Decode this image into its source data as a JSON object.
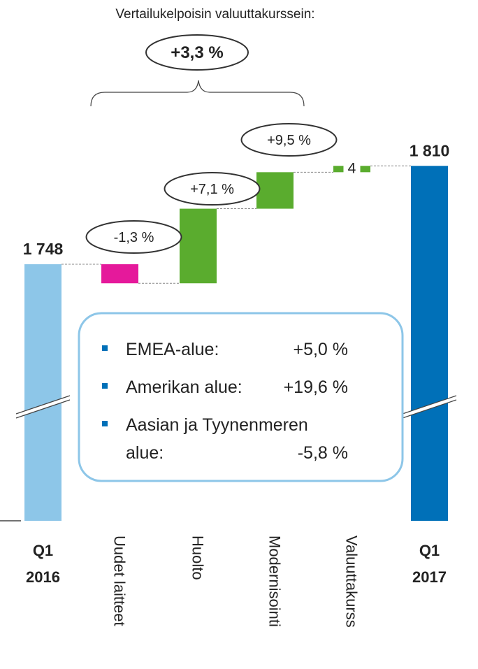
{
  "chart_data": {
    "type": "waterfall",
    "subtitle": "Vertailukelpoisin valuuttakurssein:",
    "headline": "+3,3 %",
    "categories": [
      "Q1 2016",
      "Uudet laitteet",
      "Huolto",
      "Modernisointi",
      "Valuuttakurss",
      "Q1 2017"
    ],
    "measure": [
      "absolute",
      "relative",
      "relative",
      "relative",
      "relative",
      "absolute"
    ],
    "values": [
      1748,
      -12,
      47,
      23,
      4,
      1810
    ],
    "value_labels": [
      "1 748",
      null,
      null,
      null,
      "4",
      "1 810"
    ],
    "colors": [
      "#8dc6e8",
      "#e5199b",
      "#5aac2e",
      "#5aac2e",
      "#5aac2e",
      "#0070b8"
    ],
    "annotations": [
      "-1,3 %",
      "+7,1 %",
      "+9,5 %"
    ],
    "regions": [
      {
        "label": "EMEA-alue:",
        "value": "+5,0 %"
      },
      {
        "label": "Amerikan alue:",
        "value": "+19,6 %"
      },
      {
        "label": "Aasian ja Tyynenmeren alue:",
        "value": "-5,8 %"
      }
    ]
  }
}
